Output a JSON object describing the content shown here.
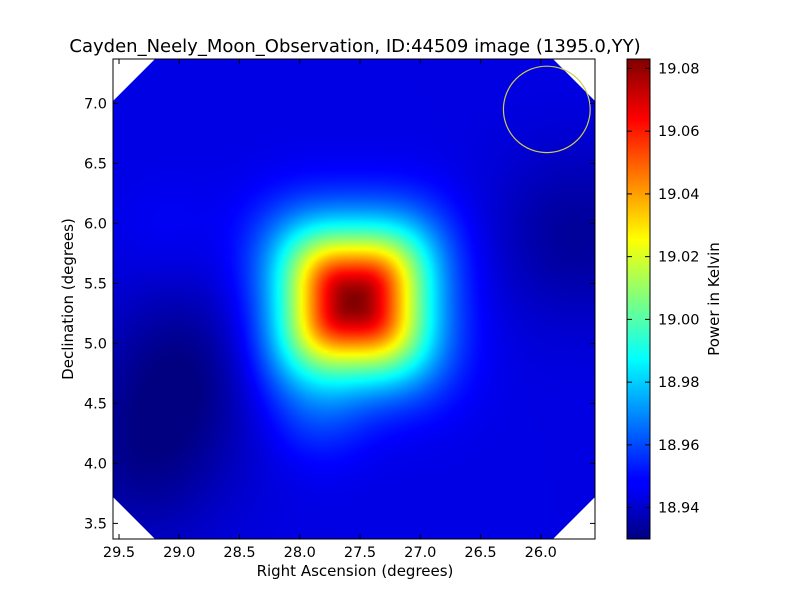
{
  "chart_data": {
    "type": "heatmap",
    "title": "Cayden_Neely_Moon_Observation, ID:44509 image (1395.0,YY)",
    "xlabel": "Right Ascension (degrees)",
    "ylabel": "Declination (degrees)",
    "colorbar_label": "Power in Kelvin",
    "xlim": [
      29.55,
      25.55
    ],
    "ylim": [
      3.37,
      7.37
    ],
    "x_ticks": [
      29.5,
      29.0,
      28.5,
      28.0,
      27.5,
      27.0,
      26.5,
      26.0
    ],
    "x_tick_labels": [
      "29.5",
      "29.0",
      "28.5",
      "28.0",
      "27.5",
      "27.0",
      "26.5",
      "26.0"
    ],
    "y_ticks": [
      3.5,
      4.0,
      4.5,
      5.0,
      5.5,
      6.0,
      6.5,
      7.0
    ],
    "y_tick_labels": [
      "3.5",
      "4.0",
      "4.5",
      "5.0",
      "5.5",
      "6.0",
      "6.5",
      "7.0"
    ],
    "colorbar_range": [
      18.93,
      19.083
    ],
    "colorbar_ticks": [
      18.94,
      18.96,
      18.98,
      19.0,
      19.02,
      19.04,
      19.06,
      19.08
    ],
    "colorbar_tick_labels": [
      "18.94",
      "18.96",
      "18.98",
      "19.00",
      "19.02",
      "19.04",
      "19.06",
      "19.08"
    ],
    "colormap": "jet",
    "background_level": 18.945,
    "peak": {
      "ra": 27.55,
      "dec": 5.35,
      "value": 19.083
    },
    "features": [
      {
        "kind": "peak",
        "ra": 27.55,
        "dec": 5.35,
        "value": 19.083
      },
      {
        "kind": "faint-lobe",
        "ra": 27.85,
        "dec": 4.4,
        "value": 18.955
      },
      {
        "kind": "faint-lobe",
        "ra": 29.1,
        "dec": 5.95,
        "value": 18.948
      },
      {
        "kind": "trough",
        "ra": 28.95,
        "dec": 4.8,
        "value": 18.932
      },
      {
        "kind": "trough",
        "ra": 29.3,
        "dec": 4.0,
        "value": 18.934
      },
      {
        "kind": "trough",
        "ra": 25.7,
        "dec": 5.9,
        "value": 18.934
      }
    ],
    "beam_circle": {
      "ra": 25.95,
      "dec": 6.95,
      "radius_deg": 0.36,
      "color": "#cccc55"
    },
    "grid": false
  }
}
